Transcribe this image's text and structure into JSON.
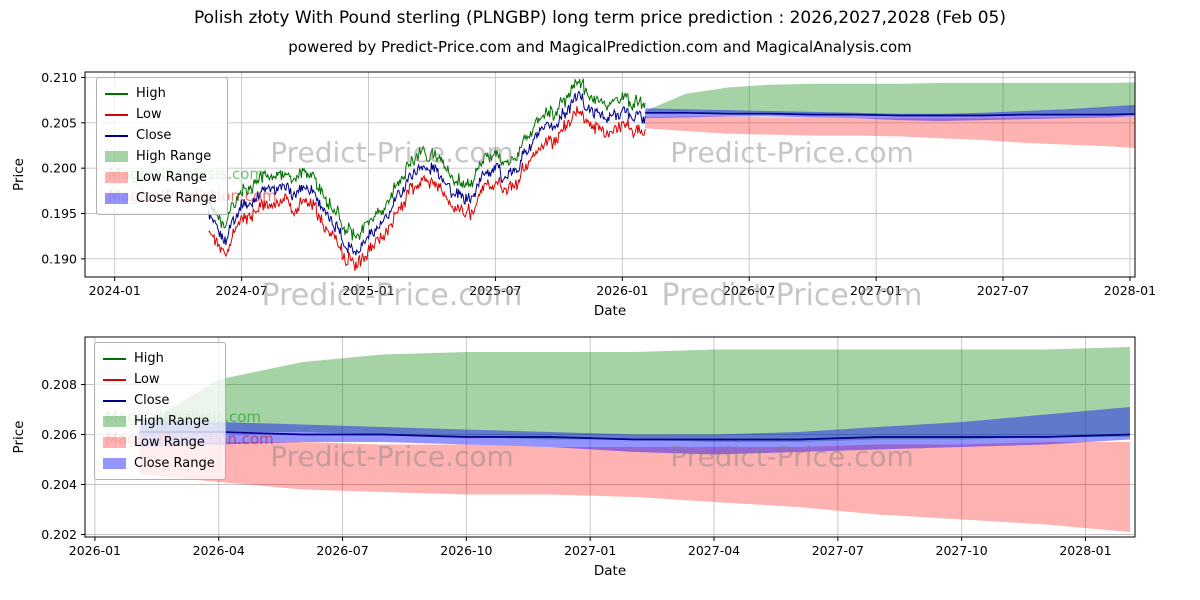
{
  "header": {
    "title": "Polish złoty With Pound sterling (PLNGBP) long term price prediction : 2026,2027,2028 (Feb 05)",
    "subtitle": "powered by Predict-Price.com and MagicalPrediction.com and MagicalAnalysis.com"
  },
  "watermarks": {
    "primary": "Predict-Price.com",
    "analysis": "MagicalAnalysis.com",
    "prediction": "MagicalPrediction.com"
  },
  "legend": {
    "items": [
      {
        "label": "High"
      },
      {
        "label": "Low"
      },
      {
        "label": "Close"
      },
      {
        "label": "High Range"
      },
      {
        "label": "Low Range"
      },
      {
        "label": "Close Range"
      }
    ]
  },
  "colors": {
    "high_line": "#007000",
    "low_line": "#dd0000",
    "close_line": "#00008b",
    "high_range_fill": "rgba(0,128,0,0.35)",
    "low_range_fill": "rgba(255,0,0,0.30)",
    "close_range_fill": "rgba(0,0,255,0.42)",
    "grid": "#c3c3c3",
    "frame": "#000000"
  },
  "chart_data": [
    {
      "name": "history-and-forecast-chart",
      "type": "line",
      "xlabel": "Date",
      "ylabel": "Price",
      "xlim": [
        2023.883,
        2028.02
      ],
      "ylim": [
        0.188,
        0.2106
      ],
      "xticks": [
        {
          "v": 2024.0,
          "label": "2024-01"
        },
        {
          "v": 2024.5,
          "label": "2024-07"
        },
        {
          "v": 2025.0,
          "label": "2025-01"
        },
        {
          "v": 2025.5,
          "label": "2025-07"
        },
        {
          "v": 2026.0,
          "label": "2026-01"
        },
        {
          "v": 2026.5,
          "label": "2026-07"
        },
        {
          "v": 2027.0,
          "label": "2027-01"
        },
        {
          "v": 2027.5,
          "label": "2027-07"
        },
        {
          "v": 2028.0,
          "label": "2028-01"
        }
      ],
      "yticks": [
        {
          "v": 0.19,
          "label": "0.190"
        },
        {
          "v": 0.195,
          "label": "0.195"
        },
        {
          "v": 0.2,
          "label": "0.200"
        },
        {
          "v": 0.205,
          "label": "0.205"
        },
        {
          "v": 0.21,
          "label": "0.210"
        }
      ],
      "history": {
        "x": [
          2024.37,
          2024.41,
          2024.44,
          2024.47,
          2024.5,
          2024.54,
          2024.58,
          2024.62,
          2024.66,
          2024.7,
          2024.74,
          2024.78,
          2024.82,
          2024.86,
          2024.9,
          2024.94,
          2024.98,
          2025.02,
          2025.06,
          2025.1,
          2025.14,
          2025.18,
          2025.22,
          2025.26,
          2025.3,
          2025.34,
          2025.38,
          2025.42,
          2025.46,
          2025.5,
          2025.54,
          2025.58,
          2025.62,
          2025.66,
          2025.7,
          2025.74,
          2025.78,
          2025.82,
          2025.86,
          2025.9,
          2025.94,
          2025.98,
          2026.02,
          2026.06,
          2026.09
        ],
        "high": [
          0.1966,
          0.1943,
          0.1931,
          0.1958,
          0.1973,
          0.1978,
          0.1985,
          0.1991,
          0.1995,
          0.1983,
          0.1993,
          0.1985,
          0.1971,
          0.1955,
          0.1933,
          0.1921,
          0.1935,
          0.1943,
          0.1953,
          0.1971,
          0.1991,
          0.2005,
          0.2013,
          0.2009,
          0.1998,
          0.1985,
          0.1975,
          0.1988,
          0.2005,
          0.2011,
          0.2005,
          0.2013,
          0.2031,
          0.2045,
          0.2053,
          0.2061,
          0.2078,
          0.2091,
          0.2083,
          0.2073,
          0.2065,
          0.2071,
          0.2075,
          0.2071,
          0.2071
        ],
        "low": [
          0.194,
          0.1917,
          0.1905,
          0.1932,
          0.1947,
          0.1952,
          0.1959,
          0.1965,
          0.1969,
          0.1957,
          0.1967,
          0.1959,
          0.1945,
          0.1929,
          0.1907,
          0.1895,
          0.1909,
          0.1917,
          0.1927,
          0.1945,
          0.1965,
          0.1979,
          0.1987,
          0.1983,
          0.1972,
          0.1959,
          0.1949,
          0.1962,
          0.1979,
          0.1985,
          0.1979,
          0.1987,
          0.2005,
          0.2019,
          0.2027,
          0.2035,
          0.2052,
          0.2065,
          0.2057,
          0.2047,
          0.2039,
          0.2045,
          0.2049,
          0.2045,
          0.2045
        ],
        "close": [
          0.1953,
          0.193,
          0.1918,
          0.1945,
          0.196,
          0.1965,
          0.1972,
          0.1978,
          0.1982,
          0.197,
          0.198,
          0.1972,
          0.1958,
          0.1942,
          0.192,
          0.1908,
          0.1922,
          0.193,
          0.194,
          0.1958,
          0.1978,
          0.1992,
          0.2,
          0.1996,
          0.1985,
          0.1972,
          0.1962,
          0.1975,
          0.1992,
          0.1998,
          0.1992,
          0.2,
          0.2018,
          0.2032,
          0.204,
          0.2048,
          0.2065,
          0.2078,
          0.207,
          0.206,
          0.2052,
          0.2058,
          0.2062,
          0.2058,
          0.2058
        ],
        "noise": 0.00055,
        "cluster": 0.0005
      },
      "forecast": {
        "x": [
          2026.09,
          2026.25,
          2026.42,
          2026.58,
          2026.75,
          2026.92,
          2027.09,
          2027.25,
          2027.42,
          2027.58,
          2027.75,
          2027.92,
          2028.09
        ],
        "high_max": [
          0.2063,
          0.2082,
          0.2089,
          0.2092,
          0.2093,
          0.2093,
          0.2093,
          0.2094,
          0.2094,
          0.2094,
          0.2094,
          0.2094,
          0.2095
        ],
        "high_min": [
          0.206,
          0.2061,
          0.2061,
          0.206,
          0.2059,
          0.2058,
          0.2058,
          0.2057,
          0.2057,
          0.2058,
          0.2058,
          0.2059,
          0.2059
        ],
        "low_max": [
          0.2056,
          0.2057,
          0.2057,
          0.2056,
          0.2056,
          0.2055,
          0.2055,
          0.2055,
          0.2055,
          0.2056,
          0.2056,
          0.2057,
          0.2057
        ],
        "low_min": [
          0.2044,
          0.2041,
          0.2038,
          0.2037,
          0.2036,
          0.2036,
          0.2035,
          0.2033,
          0.2031,
          0.2028,
          0.2026,
          0.2024,
          0.2021
        ],
        "close_max": [
          0.2066,
          0.2065,
          0.2064,
          0.2063,
          0.2062,
          0.2061,
          0.206,
          0.206,
          0.2061,
          0.2063,
          0.2065,
          0.2068,
          0.2071
        ],
        "close_min": [
          0.2055,
          0.2056,
          0.2057,
          0.2057,
          0.2056,
          0.2055,
          0.2053,
          0.2052,
          0.2053,
          0.2054,
          0.2055,
          0.2056,
          0.2058
        ],
        "close": [
          0.2061,
          0.2061,
          0.206,
          0.206,
          0.2059,
          0.2059,
          0.2058,
          0.2058,
          0.2058,
          0.2059,
          0.2059,
          0.2059,
          0.206
        ]
      }
    },
    {
      "name": "forecast-detail-chart",
      "type": "line",
      "xlabel": "Date",
      "ylabel": "Price",
      "xlim": [
        2025.98,
        2028.1
      ],
      "ylim": [
        0.2019,
        0.2099
      ],
      "xticks": [
        {
          "v": 2026.0,
          "label": "2026-01"
        },
        {
          "v": 2026.25,
          "label": "2026-04"
        },
        {
          "v": 2026.5,
          "label": "2026-07"
        },
        {
          "v": 2026.75,
          "label": "2026-10"
        },
        {
          "v": 2027.0,
          "label": "2027-01"
        },
        {
          "v": 2027.25,
          "label": "2027-04"
        },
        {
          "v": 2027.5,
          "label": "2027-07"
        },
        {
          "v": 2027.75,
          "label": "2027-10"
        },
        {
          "v": 2028.0,
          "label": "2028-01"
        }
      ],
      "yticks": [
        {
          "v": 0.202,
          "label": "0.202"
        },
        {
          "v": 0.204,
          "label": "0.204"
        },
        {
          "v": 0.206,
          "label": "0.206"
        },
        {
          "v": 0.208,
          "label": "0.208"
        }
      ],
      "forecast": {
        "x": [
          2026.09,
          2026.25,
          2026.42,
          2026.58,
          2026.75,
          2026.92,
          2027.09,
          2027.25,
          2027.42,
          2027.58,
          2027.75,
          2027.92,
          2028.09
        ],
        "high_max": [
          0.2063,
          0.2082,
          0.2089,
          0.2092,
          0.2093,
          0.2093,
          0.2093,
          0.2094,
          0.2094,
          0.2094,
          0.2094,
          0.2094,
          0.2095
        ],
        "high_min": [
          0.206,
          0.2061,
          0.2061,
          0.206,
          0.2059,
          0.2058,
          0.2058,
          0.2057,
          0.2057,
          0.2058,
          0.2058,
          0.2059,
          0.2059
        ],
        "low_max": [
          0.2056,
          0.2057,
          0.2057,
          0.2056,
          0.2056,
          0.2055,
          0.2055,
          0.2055,
          0.2055,
          0.2056,
          0.2056,
          0.2057,
          0.2057
        ],
        "low_min": [
          0.2044,
          0.2041,
          0.2038,
          0.2037,
          0.2036,
          0.2036,
          0.2035,
          0.2033,
          0.2031,
          0.2028,
          0.2026,
          0.2024,
          0.2021
        ],
        "close_max": [
          0.2066,
          0.2065,
          0.2064,
          0.2063,
          0.2062,
          0.2061,
          0.206,
          0.206,
          0.2061,
          0.2063,
          0.2065,
          0.2068,
          0.2071
        ],
        "close_min": [
          0.2055,
          0.2056,
          0.2057,
          0.2057,
          0.2056,
          0.2055,
          0.2053,
          0.2052,
          0.2053,
          0.2054,
          0.2055,
          0.2056,
          0.2058
        ],
        "close": [
          0.2061,
          0.2061,
          0.206,
          0.206,
          0.2059,
          0.2059,
          0.2058,
          0.2058,
          0.2058,
          0.2059,
          0.2059,
          0.2059,
          0.206
        ]
      }
    }
  ]
}
